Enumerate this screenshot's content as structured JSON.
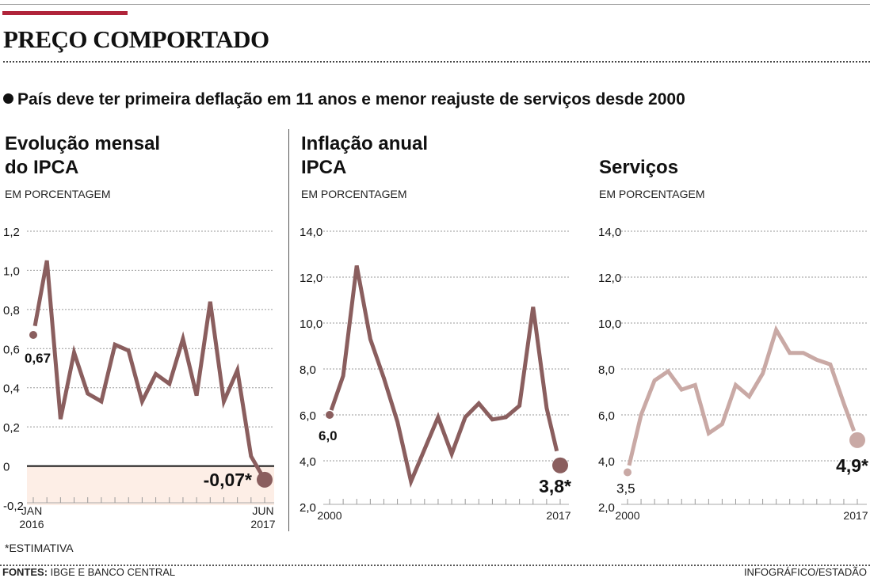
{
  "header": {
    "title": "PREÇO COMPORTADO",
    "subtitle": "País deve ter primeira deflação em 11 anos e menor reajuste de serviços desde 2000"
  },
  "colors": {
    "accent_red": "#b0243a",
    "line_dark": "#8a5e5e",
    "line_light": "#c9a9a5",
    "negative_band": "#fdeee6"
  },
  "chart_data": [
    {
      "type": "line",
      "title": "Evolução mensal do IPCA",
      "title_lines": [
        "Evolução mensal",
        "do IPCA"
      ],
      "unit_label": "EM PORCENTAGEM",
      "x": [
        "JAN 2016",
        "FEV 2016",
        "MAR 2016",
        "ABR 2016",
        "MAI 2016",
        "JUN 2016",
        "JUL 2016",
        "AGO 2016",
        "SET 2016",
        "OUT 2016",
        "NOV 2016",
        "DEZ 2016",
        "JAN 2017",
        "FEV 2017",
        "MAR 2017",
        "ABR 2017",
        "MAI 2017",
        "JUN 2017"
      ],
      "values": [
        0.67,
        1.05,
        0.24,
        0.58,
        0.37,
        0.33,
        0.62,
        0.59,
        0.33,
        0.47,
        0.42,
        0.65,
        0.36,
        0.84,
        0.33,
        0.49,
        0.05,
        -0.07
      ],
      "ylim": [
        -0.2,
        1.2
      ],
      "yticks": [
        "1,2",
        "1,0",
        "0,8",
        "0,6",
        "0,4",
        "0,2",
        "0",
        "-0,2"
      ],
      "ytick_values": [
        1.2,
        1.0,
        0.8,
        0.6,
        0.4,
        0.2,
        0,
        -0.2
      ],
      "x_start_label": [
        "JAN",
        "2016"
      ],
      "x_end_label": [
        "JUN",
        "2017"
      ],
      "first_label": "0,67",
      "last_label": "-0,07*",
      "grid": true,
      "negative_shading": true
    },
    {
      "type": "line",
      "title": "Inflação anual IPCA",
      "title_lines": [
        "Inflação anual",
        "IPCA"
      ],
      "unit_label": "EM PORCENTAGEM",
      "x": [
        2000,
        2001,
        2002,
        2003,
        2004,
        2005,
        2006,
        2007,
        2008,
        2009,
        2010,
        2011,
        2012,
        2013,
        2014,
        2015,
        2016,
        2017
      ],
      "values": [
        6.0,
        7.7,
        12.5,
        9.3,
        7.6,
        5.7,
        3.1,
        4.5,
        5.9,
        4.3,
        5.9,
        6.5,
        5.8,
        5.9,
        6.4,
        10.7,
        6.3,
        3.8
      ],
      "ylim": [
        2.0,
        14.0
      ],
      "yticks": [
        "14,0",
        "12,0",
        "10,0",
        "8,0",
        "6,0",
        "4,0",
        "2,0"
      ],
      "ytick_values": [
        14,
        12,
        10,
        8,
        6,
        4,
        2
      ],
      "x_start_label": "2000",
      "x_end_label": "2017",
      "first_label": "6,0",
      "last_label": "3,8*",
      "grid": true
    },
    {
      "type": "line",
      "title": "Serviços",
      "title_lines": [
        "",
        "Serviços"
      ],
      "unit_label": "EM PORCENTAGEM",
      "x": [
        2000,
        2001,
        2002,
        2003,
        2004,
        2005,
        2006,
        2007,
        2008,
        2009,
        2010,
        2011,
        2012,
        2013,
        2014,
        2015,
        2016,
        2017
      ],
      "values": [
        3.5,
        6.0,
        7.5,
        7.9,
        7.1,
        7.3,
        5.2,
        5.6,
        7.3,
        6.8,
        7.8,
        9.7,
        8.7,
        8.7,
        8.4,
        8.2,
        6.5,
        4.9
      ],
      "ylim": [
        2.0,
        14.0
      ],
      "yticks": [
        "14,0",
        "12,0",
        "10,0",
        "8,0",
        "6,0",
        "4,0",
        "2,0"
      ],
      "ytick_values": [
        14,
        12,
        10,
        8,
        6,
        4,
        2
      ],
      "x_start_label": "2000",
      "x_end_label": "2017",
      "first_label": "3,5",
      "last_label": "4,9*",
      "grid": true
    }
  ],
  "footer": {
    "footnote": "*ESTIMATIVA",
    "sources_label": "FONTES:",
    "sources_text": " IBGE E BANCO CENTRAL",
    "credit": "INFOGRÁFICO/ESTADÃO"
  }
}
